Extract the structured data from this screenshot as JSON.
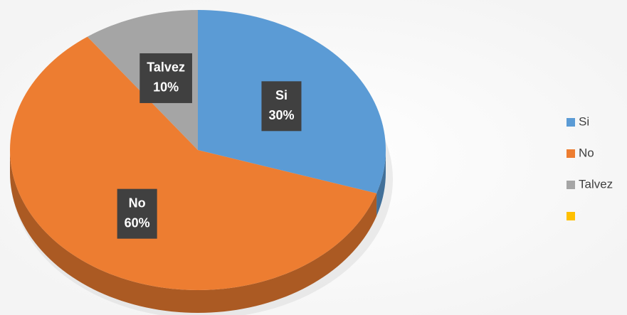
{
  "chart_data": {
    "type": "pie",
    "categories": [
      "Si",
      "No",
      "Talvez",
      null
    ],
    "values": [
      30,
      60,
      10,
      0
    ],
    "value_labels": [
      "30%",
      "60%",
      "10%",
      null
    ],
    "colors": [
      "#5b9bd5",
      "#ed7d31",
      "#a5a5a5",
      "#ffc000"
    ],
    "legend": "right"
  }
}
